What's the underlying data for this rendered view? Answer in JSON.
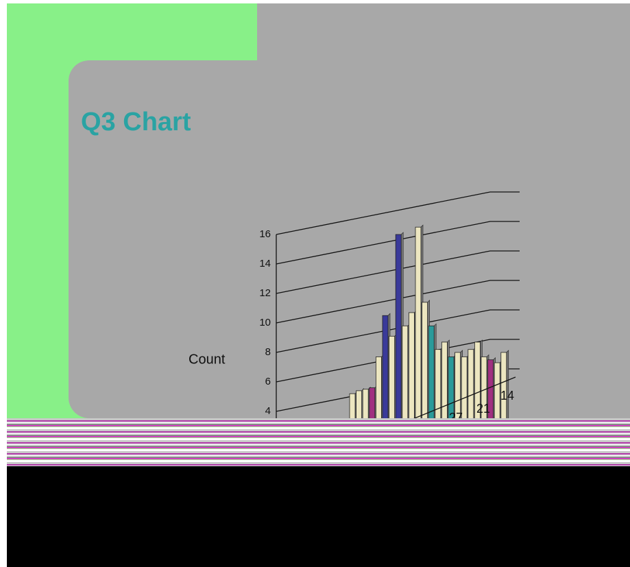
{
  "chart_data": {
    "type": "bar3d",
    "title": "Q3 Chart",
    "y_label": "Count",
    "values": [
      5.2,
      5.4,
      5.5,
      5.6,
      7.7,
      10.5,
      9.1,
      16,
      9.8,
      10.7,
      16.5,
      11.4,
      9.8,
      8.2,
      8.7,
      7.7,
      8.0,
      7.7,
      8.2,
      8.7,
      7.7,
      7.5,
      7.3,
      8.0
    ],
    "colors": [
      "#ece6c0",
      "#ece6c0",
      "#ece6c0",
      "#a03080",
      "#ece6c0",
      "#3a3a9a",
      "#ece6c0",
      "#3a3a9a",
      "#ece6c0",
      "#ece6c0",
      "#ece6c0",
      "#ece6c0",
      "#2a9a9a",
      "#ece6c0",
      "#ece6c0",
      "#2a9a9a",
      "#ece6c0",
      "#ece6c0",
      "#ece6c0",
      "#ece6c0",
      "#ece6c0",
      "#a03080",
      "#ece6c0",
      "#ece6c0"
    ],
    "depth_categories": [
      "27",
      "21",
      "14"
    ],
    "ylim": [
      0,
      16
    ],
    "yticks": [
      4,
      6,
      8,
      10,
      12,
      14,
      16
    ],
    "grid": true
  }
}
